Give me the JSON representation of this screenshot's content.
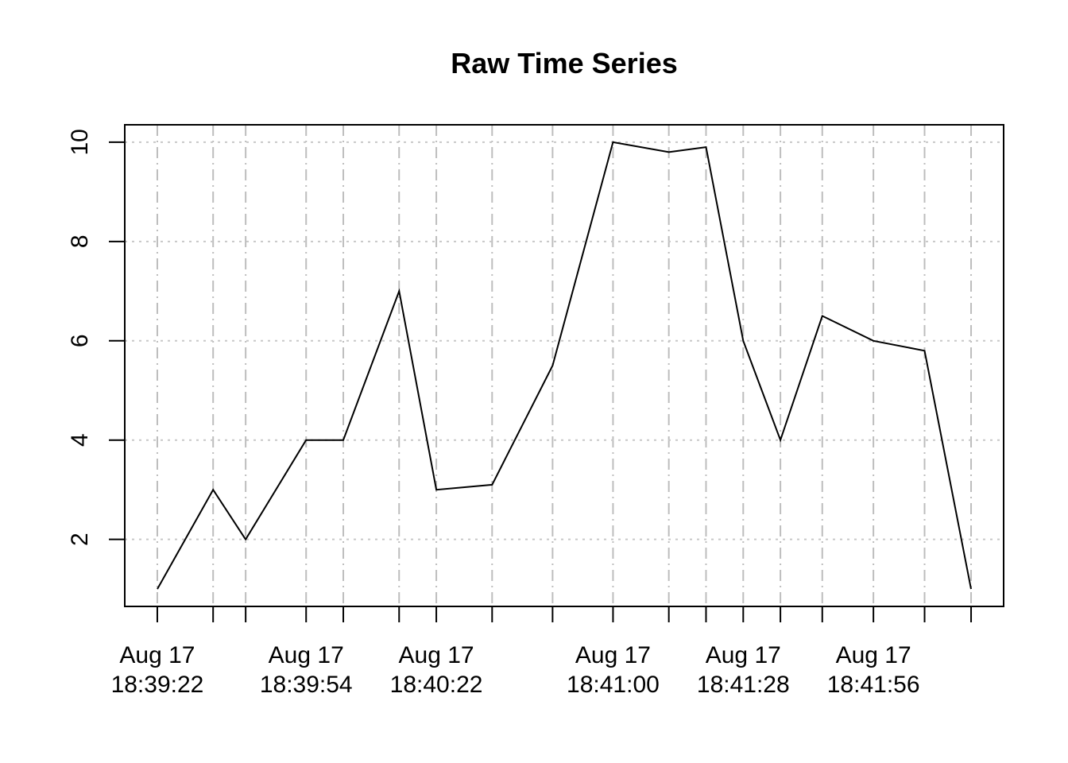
{
  "chart_data": {
    "type": "line",
    "title": "Raw Time Series",
    "xlabel": "",
    "ylabel": "",
    "ylim": [
      0.65,
      10.35
    ],
    "y_ticks": [
      2,
      4,
      6,
      8,
      10
    ],
    "grid": true,
    "x_date_label": "Aug 17",
    "x_labeled_ticks": [
      {
        "date": "Aug 17",
        "time": "18:39:22"
      },
      {
        "date": "Aug 17",
        "time": "18:39:54"
      },
      {
        "date": "Aug 17",
        "time": "18:40:22"
      },
      {
        "date": "Aug 17",
        "time": "18:41:00"
      },
      {
        "date": "Aug 17",
        "time": "18:41:28"
      },
      {
        "date": "Aug 17",
        "time": "18:41:56"
      }
    ],
    "x": [
      "18:39:22",
      "18:39:34",
      "18:39:41",
      "18:39:54",
      "18:40:02",
      "18:40:14",
      "18:40:22",
      "18:40:34",
      "18:40:47",
      "18:41:00",
      "18:41:12",
      "18:41:20",
      "18:41:28",
      "18:41:36",
      "18:41:45",
      "18:41:56",
      "18:42:07",
      "18:42:17"
    ],
    "series": [
      {
        "values": [
          1,
          3,
          2,
          4,
          4,
          7,
          3,
          3.1,
          5.5,
          10,
          9.8,
          9.9,
          6,
          4,
          6.5,
          6,
          5.8,
          1
        ]
      }
    ]
  }
}
